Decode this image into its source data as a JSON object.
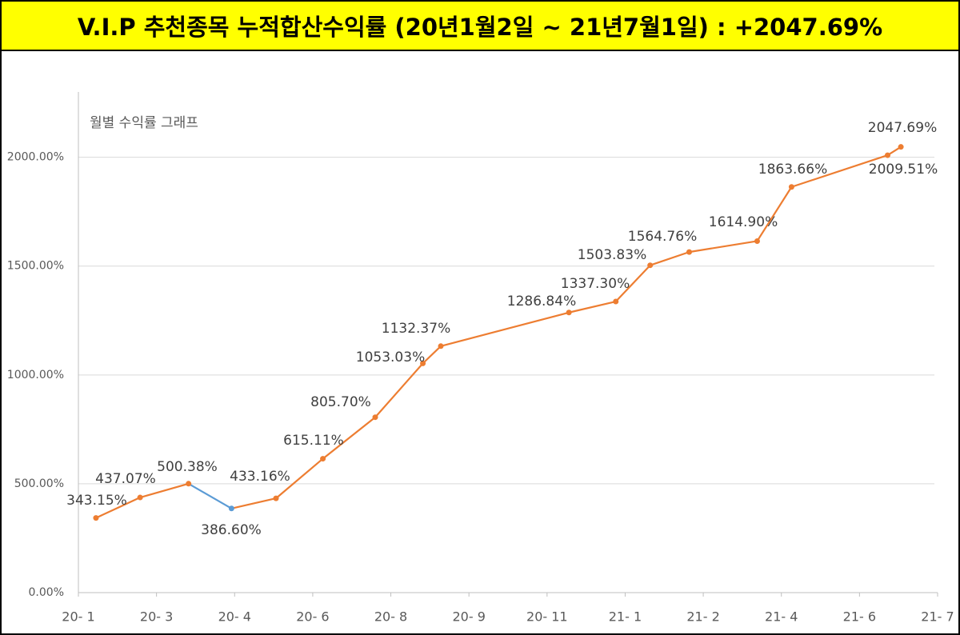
{
  "header": {
    "title": "V.I.P 추천종목 누적합산수익률 (20년1월2일 ~ 21년7월1일) : +2047.69%"
  },
  "chart_data": {
    "type": "line",
    "subtitle": "월별 수익률 그래프",
    "x": [
      0.225,
      0.79,
      1.41,
      1.96,
      2.53,
      3.13,
      3.8,
      4.41,
      4.64,
      6.28,
      6.88,
      7.32,
      7.82,
      8.69,
      9.13,
      10.36,
      10.53
    ],
    "series": [
      {
        "color": "#ed7d31",
        "colors": [
          "#ed7d31",
          "#ed7d31",
          "#ed7d31",
          "#5b9bd5",
          "#ed7d31",
          "#ed7d31",
          "#ed7d31",
          "#ed7d31",
          "#ed7d31",
          "#ed7d31",
          "#ed7d31",
          "#ed7d31",
          "#ed7d31",
          "#ed7d31",
          "#ed7d31",
          "#ed7d31",
          "#ed7d31"
        ],
        "values": [
          343.15,
          437.07,
          500.38,
          386.6,
          433.16,
          615.11,
          805.7,
          1053.03,
          1132.37,
          1286.84,
          1337.3,
          1503.83,
          1564.76,
          1614.9,
          1863.66,
          2009.51,
          2047.69
        ],
        "value_labels": [
          "343.15%",
          "437.07%",
          "500.38%",
          "386.60%",
          "433.16%",
          "615.11%",
          "805.70%",
          "1053.03%",
          "1132.37%",
          "1286.84%",
          "1337.30%",
          "1503.83%",
          "1564.76%",
          "1614.90%",
          "1863.66%",
          "2009.51%",
          "2047.69%"
        ]
      }
    ],
    "xlim": [
      0,
      11
    ],
    "xticks": [
      {
        "value": 0,
        "label": "20- 1"
      },
      {
        "value": 1,
        "label": "20- 3"
      },
      {
        "value": 2,
        "label": "20- 4"
      },
      {
        "value": 3,
        "label": "20- 6"
      },
      {
        "value": 4,
        "label": "20- 8"
      },
      {
        "value": 5,
        "label": "20- 9"
      },
      {
        "value": 6,
        "label": "20- 11"
      },
      {
        "value": 7,
        "label": "21- 1"
      },
      {
        "value": 8,
        "label": "21- 2"
      },
      {
        "value": 9,
        "label": "21- 4"
      },
      {
        "value": 10,
        "label": "21- 6"
      },
      {
        "value": 11,
        "label": "21- 7"
      }
    ],
    "ylim": [
      0,
      2300
    ],
    "yticks": [
      {
        "value": 0,
        "label": "0.00%"
      },
      {
        "value": 500,
        "label": "500.00%"
      },
      {
        "value": 1000,
        "label": "1000.00%"
      },
      {
        "value": 1500,
        "label": "1500.00%"
      },
      {
        "value": 2000,
        "label": "2000.00%"
      }
    ],
    "grid": true
  }
}
